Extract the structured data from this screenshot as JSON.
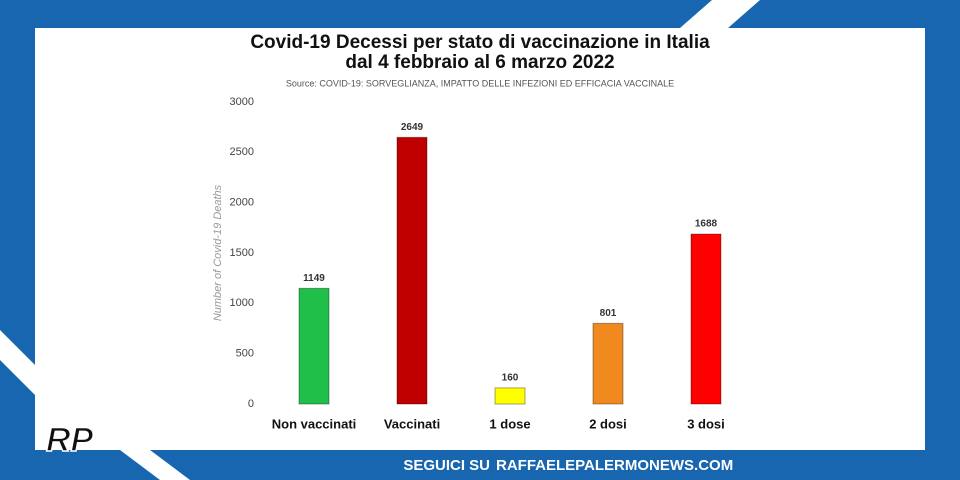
{
  "chart_data": {
    "type": "bar",
    "title": "Covid-19 Decessi per stato di vaccinazione in Italia",
    "subtitle": "dal 4 febbraio al 6 marzo 2022",
    "source": "Source: COVID-19: SORVEGLIANZA, IMPATTO DELLE INFEZIONI ED EFFICACIA VACCINALE",
    "y_label": "Number of Covid-19  Deaths",
    "categories": [
      "Non vaccinati",
      "Vaccinati",
      "1 dose",
      "2 dosi",
      "3 dosi"
    ],
    "values": [
      1149,
      2649,
      160,
      801,
      1688
    ],
    "colors": [
      "#1fbf4a",
      "#c00000",
      "#ffff00",
      "#f08a1e",
      "#ff0000"
    ],
    "ylim": [
      0,
      3000
    ],
    "yticks": [
      0,
      500,
      1000,
      1500,
      2000,
      2500,
      3000
    ],
    "grid": false
  },
  "footer": {
    "prefix": "SEGUICI SU",
    "site": "RAFFAELEPALERMONEWS.COM"
  },
  "logo": "RP"
}
